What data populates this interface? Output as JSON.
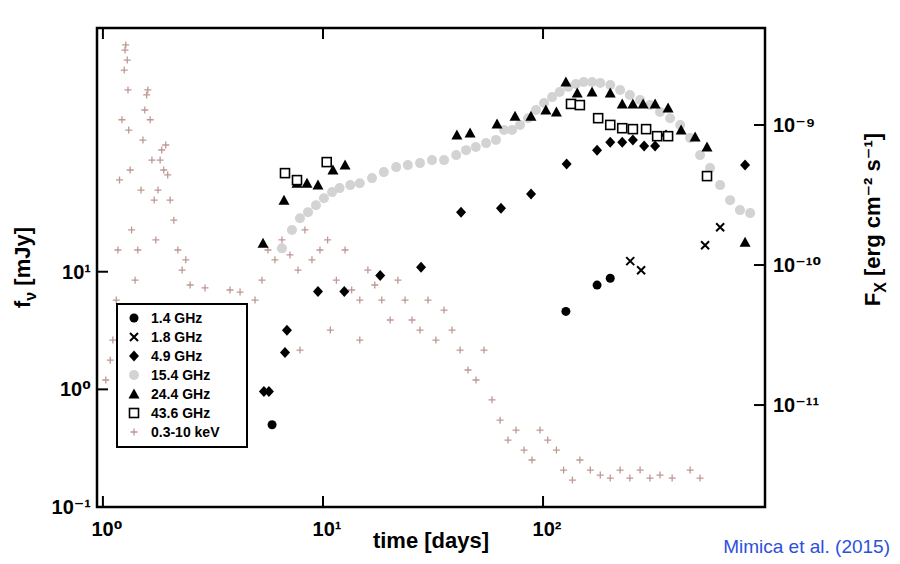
{
  "chart_data": {
    "type": "scatter",
    "xlabel": "time [days]",
    "ylabel": "fν [mJy]",
    "y2label": "FX [erg cm⁻² s⁻¹]",
    "annotation": "Mimica et al. (2015)",
    "log": true,
    "legend": "lower left",
    "xlim": [
      0.94,
      1020
    ],
    "ylim": [
      0.1,
      1180
    ],
    "y2lim": [
      1.87e-12,
      4.93e-09
    ],
    "xticks": [
      {
        "value": 1,
        "label": "10⁰"
      },
      {
        "value": 10,
        "label": "10¹"
      },
      {
        "value": 100,
        "label": "10²"
      }
    ],
    "yticks": [
      {
        "value": 0.1,
        "label": "10⁻¹"
      },
      {
        "value": 1,
        "label": "10⁰"
      },
      {
        "value": 10,
        "label": "10¹"
      }
    ],
    "y2ticks": [
      {
        "value": 1e-11,
        "label": "10⁻¹¹"
      },
      {
        "value": 1e-10,
        "label": "10⁻¹⁰"
      },
      {
        "value": 1e-09,
        "label": "10⁻⁹"
      }
    ],
    "series": [
      {
        "name": "1.4 GHz",
        "color": "#000000",
        "marker": "circle",
        "x": [
          5.87,
          127,
          176,
          202
        ],
        "values": [
          0.5,
          4.6,
          7.7,
          8.8
        ]
      },
      {
        "name": "1.8 GHz",
        "color": "#000000",
        "marker": "x",
        "x": [
          249,
          279,
          545,
          638
        ],
        "values": [
          12.3,
          10.3,
          16.8,
          23.9
        ]
      },
      {
        "name": "4.9 GHz",
        "color": "#000000",
        "marker": "diamond",
        "x": [
          5.39,
          5.68,
          6.72,
          6.86,
          9.49,
          12.5,
          18.2,
          27.9,
          42.4,
          64.4,
          88.2,
          128,
          176,
          202,
          229,
          256,
          288,
          323,
          362,
          828
        ],
        "values": [
          0.96,
          0.96,
          2.06,
          3.18,
          6.8,
          6.8,
          9.3,
          10.9,
          32.1,
          34.7,
          45.7,
          82.2,
          108,
          126,
          126,
          132,
          117,
          117,
          145,
          80.6
        ]
      },
      {
        "name": "15.4 GHz",
        "color": "#d3d3d3",
        "marker": "circle",
        "x": [
          6.51,
          7.23,
          7.86,
          8.55,
          9.29,
          10.1,
          11.0,
          11.9,
          13.3,
          14.7,
          16.7,
          18.9,
          21.5,
          24.3,
          27.6,
          31.3,
          35.5,
          40.3,
          44.7,
          49.5,
          55.1,
          61.1,
          66.5,
          72.3,
          78.6,
          85.5,
          92.9,
          101,
          110,
          119,
          130,
          141,
          153,
          167,
          182,
          202,
          224,
          248,
          276,
          306,
          340,
          378,
          420,
          466,
          517,
          574,
          638,
          708,
          785,
          873
        ],
        "values": [
          15.8,
          22.6,
          28.5,
          32.1,
          36.8,
          42.2,
          47.5,
          51.4,
          54.5,
          56.6,
          62.5,
          70.3,
          77.5,
          80.6,
          83.8,
          88.9,
          88.9,
          98,
          108,
          115,
          124,
          132,
          160,
          160,
          177,
          202,
          237,
          272,
          305,
          337,
          372,
          394,
          410,
          410,
          402,
          386,
          351,
          318,
          288,
          261,
          228,
          202,
          177,
          137,
          98,
          76,
          54.5,
          40.6,
          33.4,
          31.5
        ]
      },
      {
        "name": "24.4 GHz",
        "color": "#000000",
        "marker": "triangle",
        "x": [
          5.34,
          6.65,
          7.62,
          8.46,
          9.49,
          11.1,
          12.6,
          40.6,
          46.6,
          61.8,
          74.6,
          88.1,
          103,
          115,
          127,
          143,
          167,
          202,
          229,
          256,
          285,
          323,
          370,
          424,
          491,
          556,
          828
        ],
        "values": [
          17.5,
          40.6,
          56.6,
          56.6,
          54.5,
          73.1,
          80.6,
          145,
          151,
          180,
          210,
          210,
          237,
          228,
          410,
          331,
          337,
          331,
          267,
          267,
          267,
          267,
          246,
          160,
          140,
          115,
          17.8
        ]
      },
      {
        "name": "43.6 GHz",
        "color": "#000000",
        "marker": "square-open",
        "x": [
          6.72,
          7.62,
          10.4,
          134,
          147,
          178,
          202,
          229,
          256,
          294,
          330,
          370,
          556
        ],
        "values": [
          68.9,
          60.1,
          85.5,
          267,
          261,
          202,
          177,
          166,
          163,
          163,
          142,
          142,
          65
        ]
      },
      {
        "name": "0.3-10 keV",
        "color": "#bf9894",
        "marker": "plus",
        "axis": "y2",
        "x": [
          1.03,
          1.08,
          1.11,
          1.15,
          1.17,
          1.19,
          1.22,
          1.25,
          1.26,
          1.27,
          1.29,
          1.3,
          1.31,
          1.33,
          1.35,
          1.4,
          1.44,
          1.49,
          1.52,
          1.55,
          1.58,
          1.6,
          1.64,
          1.67,
          1.71,
          1.74,
          1.78,
          1.82,
          1.85,
          1.89,
          1.93,
          1.97,
          2.02,
          2.1,
          2.19,
          2.29,
          2.38,
          2.49,
          2.91,
          3.78,
          4.2,
          4.91,
          5.28,
          5.62,
          6.05,
          6.51,
          7.08,
          7.7,
          8.28,
          8.91,
          9.69,
          10.5,
          11.5,
          12.6,
          13.5,
          14.7,
          16.0,
          17.2,
          18.5,
          20.2,
          21.9,
          23.6,
          25.4,
          27.6,
          30.0,
          32.6,
          35.5,
          38.6,
          42.0,
          45.6,
          49.6,
          53.9,
          58.6,
          63.8,
          69.3,
          75.4,
          82.0,
          89.1,
          96.9,
          105,
          115,
          124,
          136,
          147,
          164,
          182,
          202,
          224,
          248,
          276,
          306,
          340,
          386,
          466,
          517,
          7.86,
          10.8,
          14.7
        ],
        "values": [
          1.51e-11,
          2.09e-11,
          2.91e-11,
          5.62e-11,
          1.28e-10,
          4.05e-10,
          1.09e-09,
          2.47e-09,
          3.43e-09,
          3.73e-09,
          2.91e-09,
          1.78e-09,
          9.2e-10,
          4.77e-10,
          1.78e-10,
          7.8e-11,
          1.28e-10,
          3.43e-10,
          7.8e-10,
          1.28e-09,
          1.64e-09,
          1.78e-09,
          1.09e-09,
          5.62e-10,
          2.91e-10,
          1.51e-10,
          3.43e-10,
          5.62e-10,
          6.63e-10,
          4.77e-10,
          7.2e-10,
          4.4e-10,
          2.91e-10,
          2.09e-10,
          1.28e-10,
          9.2e-11,
          1.09e-10,
          7.2e-11,
          6.86e-11,
          6.63e-11,
          6.41e-11,
          5.62e-11,
          7.8e-11,
          1.28e-10,
          1.09e-10,
          1.51e-10,
          1.18e-10,
          9.2e-11,
          1.78e-10,
          1.09e-10,
          1.28e-10,
          1.51e-10,
          7.8e-11,
          1.28e-10,
          6.63e-11,
          5.62e-11,
          9.2e-11,
          7.2e-11,
          5.62e-11,
          4.05e-11,
          7.8e-11,
          5.62e-11,
          4.05e-11,
          3.43e-11,
          5.62e-11,
          2.91e-11,
          4.77e-11,
          3.43e-11,
          2.47e-11,
          1.78e-11,
          1.51e-11,
          2.47e-11,
          1.09e-11,
          7.8e-12,
          5.62e-12,
          6.63e-12,
          4.77e-12,
          4.05e-12,
          6.63e-12,
          5.62e-12,
          4.77e-12,
          3.43e-12,
          2.91e-12,
          4.05e-12,
          3.43e-12,
          3.16e-12,
          3.01e-12,
          3.43e-12,
          3.01e-12,
          3.43e-12,
          3.01e-12,
          3.16e-12,
          3.01e-12,
          3.43e-12,
          3.01e-12,
          2.47e-11,
          3.43e-11,
          2.91e-11
        ]
      }
    ]
  }
}
